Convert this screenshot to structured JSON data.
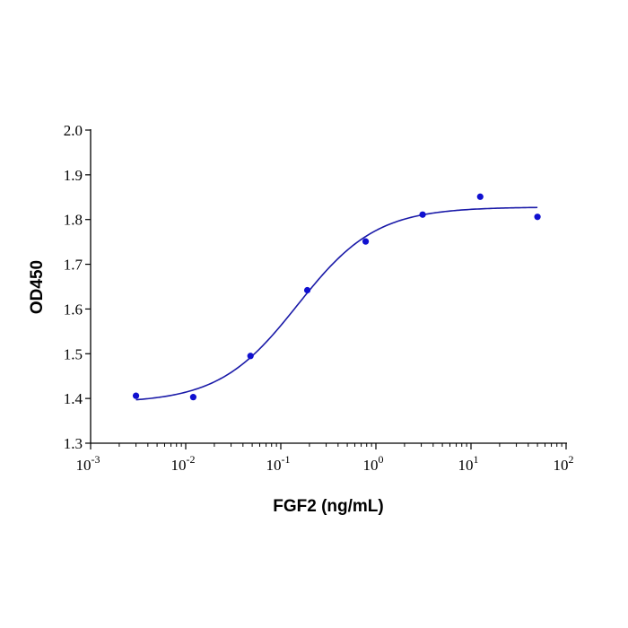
{
  "chart_data": {
    "type": "scatter",
    "xlabel": "FGF2 (ng/mL)",
    "ylabel": "OD450",
    "xscale": "log",
    "xlim": [
      0.001,
      100
    ],
    "ylim": [
      1.3,
      2.0
    ],
    "x_ticks": [
      {
        "base": "10",
        "exp": "-3"
      },
      {
        "base": "10",
        "exp": "-2"
      },
      {
        "base": "10",
        "exp": "-1"
      },
      {
        "base": "10",
        "exp": "0"
      },
      {
        "base": "10",
        "exp": "1"
      },
      {
        "base": "10",
        "exp": "2"
      }
    ],
    "y_ticks": [
      "1.3",
      "1.4",
      "1.5",
      "1.6",
      "1.7",
      "1.8",
      "1.9",
      "2.0"
    ],
    "grid": false,
    "series": [
      {
        "points": [
          {
            "x": 0.003,
            "y": 1.406
          },
          {
            "x": 0.012,
            "y": 1.403
          },
          {
            "x": 0.048,
            "y": 1.495
          },
          {
            "x": 0.19,
            "y": 1.642
          },
          {
            "x": 0.78,
            "y": 1.751
          },
          {
            "x": 3.1,
            "y": 1.811
          },
          {
            "x": 12.5,
            "y": 1.851
          },
          {
            "x": 50,
            "y": 1.806
          }
        ],
        "fit": {
          "model": "4PL",
          "bottom": 1.39,
          "top": 1.828,
          "ec50": 0.15,
          "hill": 1.05
        }
      }
    ],
    "colors": {
      "points": "#1010d0",
      "curve": "#1a1aa8",
      "axis": "#000000"
    }
  }
}
